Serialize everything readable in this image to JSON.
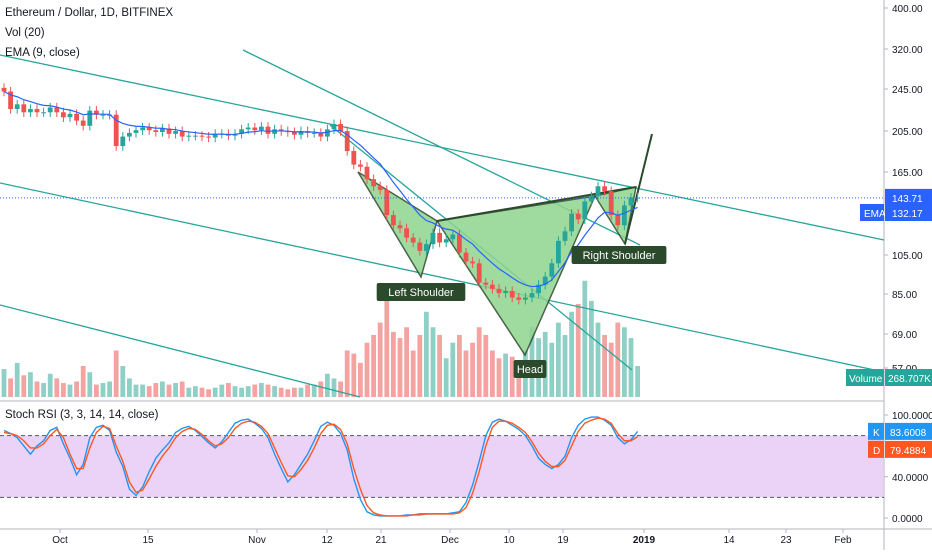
{
  "header": {
    "symbol_line": "Ethereum / Dollar, 1D, BITFINEX",
    "vol_line": "Vol (20)",
    "ema_line": "EMA (9, close)",
    "stoch_line": "Stoch RSI (3, 3, 14, 14, close)"
  },
  "price_axis": {
    "ticks": [
      "400.00",
      "320.00",
      "245.00",
      "205.00",
      "165.00",
      "143.71",
      "132.17",
      "105.00",
      "85.00",
      "69.00",
      "57.00",
      "268.707K"
    ],
    "last_price_label": "143.71",
    "ema_label_name": "EMA",
    "ema_label_value": "132.17",
    "volume_label_name": "Volume",
    "volume_label_value": "268.707K"
  },
  "stoch_axis": {
    "ticks": [
      "100.0000",
      "40.0000",
      "0.0000"
    ],
    "k_name": "K",
    "k_value": "83.6008",
    "d_name": "D",
    "d_value": "79.4884"
  },
  "time_axis": {
    "labels": [
      "Oct",
      "15",
      "Nov",
      "12",
      "21",
      "Dec",
      "10",
      "19",
      "2019",
      "14",
      "23",
      "Feb"
    ]
  },
  "annotations": {
    "left_shoulder": "Left Shoulder",
    "head": "Head",
    "right_shoulder": "Right Shoulder"
  },
  "colors": {
    "up": "#26a69a",
    "down": "#ef5350",
    "vol_up": "#8fd0c6",
    "vol_down": "#f4a3a1",
    "ema": "#2962ff",
    "trend": "#26a69a",
    "pattern_fill": "#8fd48f",
    "pattern_line": "#2b4a2b",
    "label_bg": "#2b4a2b",
    "k_line": "#2196f3",
    "d_line": "#ff5722",
    "stoch_band": "#e5c8f5"
  },
  "chart_data": [
    {
      "type": "candlestick",
      "title": "Ethereum / Dollar, 1D, BITFINEX",
      "y_scale": "log",
      "ylim": [
        55,
        430
      ],
      "x": "daily, Sep 24 2018 - Dec 29 2018",
      "close": [
        255,
        232,
        238,
        228,
        232,
        228,
        228,
        234,
        228,
        222,
        226,
        218,
        212,
        230,
        225,
        225,
        225,
        190,
        200,
        204,
        207,
        210,
        207,
        205,
        209,
        203,
        206,
        200,
        201,
        201,
        200,
        199,
        203,
        203,
        201,
        203,
        208,
        210,
        207,
        211,
        203,
        208,
        206,
        205,
        202,
        206,
        204,
        204,
        200,
        208,
        214,
        206,
        185,
        172,
        170,
        159,
        153,
        150,
        131,
        124,
        122,
        116,
        113,
        108,
        112,
        119,
        113,
        115,
        118,
        107,
        102,
        101,
        91,
        90,
        88,
        86,
        87,
        84,
        83,
        84,
        86,
        90,
        94,
        101,
        114,
        120,
        132,
        128,
        141,
        145,
        153,
        149,
        131,
        124,
        138,
        144,
        144
      ],
      "ema_last": 132.17,
      "last_close": 143.71,
      "volume_last": "268.707K",
      "pattern": {
        "name": "inverse head and shoulders",
        "points": [
          "Left Shoulder",
          "Head",
          "Right Shoulder"
        ]
      }
    },
    {
      "type": "line",
      "title": "Stoch RSI (3, 3, 14, 14, close)",
      "ylim": [
        0,
        100
      ],
      "series": [
        {
          "name": "K",
          "values": [
            85,
            82,
            78,
            70,
            62,
            70,
            75,
            85,
            88,
            72,
            58,
            42,
            52,
            78,
            88,
            90,
            85,
            64,
            50,
            28,
            22,
            30,
            45,
            58,
            66,
            73,
            83,
            87,
            89,
            85,
            79,
            73,
            68,
            74,
            83,
            92,
            95,
            96,
            92,
            87,
            78,
            62,
            48,
            35,
            42,
            52,
            62,
            75,
            89,
            93,
            90,
            82,
            66,
            38,
            18,
            6,
            3,
            2,
            2,
            2,
            2,
            3,
            3,
            4,
            4,
            4,
            4,
            4,
            5,
            6,
            15,
            32,
            55,
            80,
            93,
            96,
            94,
            90,
            86,
            80,
            70,
            58,
            52,
            48,
            52,
            60,
            78,
            90,
            96,
            98,
            98,
            95,
            90,
            78,
            72,
            76,
            84
          ]
        },
        {
          "name": "D",
          "values": [
            83,
            82,
            80,
            75,
            68,
            68,
            72,
            80,
            86,
            78,
            62,
            48,
            48,
            68,
            83,
            89,
            87,
            70,
            55,
            35,
            25,
            27,
            38,
            50,
            60,
            68,
            78,
            84,
            87,
            86,
            81,
            75,
            70,
            72,
            78,
            87,
            92,
            94,
            93,
            89,
            82,
            68,
            54,
            41,
            40,
            47,
            56,
            68,
            82,
            90,
            91,
            86,
            72,
            48,
            28,
            12,
            5,
            3,
            2,
            2,
            2,
            2,
            3,
            3,
            4,
            4,
            4,
            4,
            4,
            5,
            10,
            24,
            45,
            70,
            88,
            94,
            94,
            92,
            88,
            83,
            74,
            63,
            55,
            50,
            50,
            56,
            70,
            84,
            92,
            95,
            97,
            96,
            92,
            82,
            75,
            75,
            79
          ]
        }
      ],
      "k_last": 83.6008,
      "d_last": 79.4884,
      "bands": [
        20,
        80
      ]
    }
  ]
}
